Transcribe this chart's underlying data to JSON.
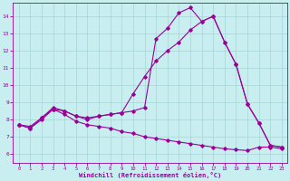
{
  "xlabel": "Windchill (Refroidissement éolien,°C)",
  "ylabel": "",
  "xlim": [
    -0.5,
    23.5
  ],
  "ylim": [
    5.5,
    14.8
  ],
  "xticks": [
    0,
    1,
    2,
    3,
    4,
    5,
    6,
    7,
    8,
    9,
    10,
    11,
    12,
    13,
    14,
    15,
    16,
    17,
    18,
    19,
    20,
    21,
    22,
    23
  ],
  "yticks": [
    6,
    7,
    8,
    9,
    10,
    11,
    12,
    13,
    14
  ],
  "bg_color": "#c8eef0",
  "line_color": "#990099",
  "grid_color": "#a0cece",
  "line1_x": [
    0,
    1,
    2,
    3,
    4,
    5,
    6,
    7,
    8,
    9,
    10,
    11,
    12,
    13,
    14,
    15,
    16,
    17,
    18,
    19,
    20,
    21,
    22,
    23
  ],
  "line1_y": [
    7.7,
    7.5,
    8.1,
    8.6,
    8.5,
    8.2,
    8.0,
    8.2,
    8.3,
    8.4,
    8.5,
    8.7,
    12.7,
    13.3,
    14.2,
    14.5,
    13.7,
    14.0,
    12.5,
    11.2,
    8.9,
    7.8,
    6.5,
    6.4
  ],
  "line2_x": [
    0,
    1,
    2,
    3,
    4,
    5,
    6,
    7,
    8,
    9,
    10,
    11,
    12,
    13,
    14,
    15,
    16,
    17,
    18,
    19,
    20,
    21,
    22,
    23
  ],
  "line2_y": [
    7.7,
    7.6,
    8.1,
    8.7,
    8.5,
    8.2,
    8.1,
    8.2,
    8.3,
    8.4,
    9.5,
    10.5,
    11.4,
    12.0,
    12.5,
    13.2,
    13.7,
    14.0,
    12.5,
    11.2,
    8.9,
    7.8,
    6.5,
    6.4
  ],
  "line3_x": [
    0,
    1,
    2,
    3,
    4,
    5,
    6,
    7,
    8,
    9,
    10,
    11,
    12,
    13,
    14,
    15,
    16,
    17,
    18,
    19,
    20,
    21,
    22,
    23
  ],
  "line3_y": [
    7.7,
    7.5,
    8.0,
    8.6,
    8.3,
    7.9,
    7.7,
    7.6,
    7.5,
    7.3,
    7.2,
    7.0,
    6.9,
    6.8,
    6.7,
    6.6,
    6.5,
    6.4,
    6.3,
    6.25,
    6.2,
    6.4,
    6.4,
    6.3
  ]
}
